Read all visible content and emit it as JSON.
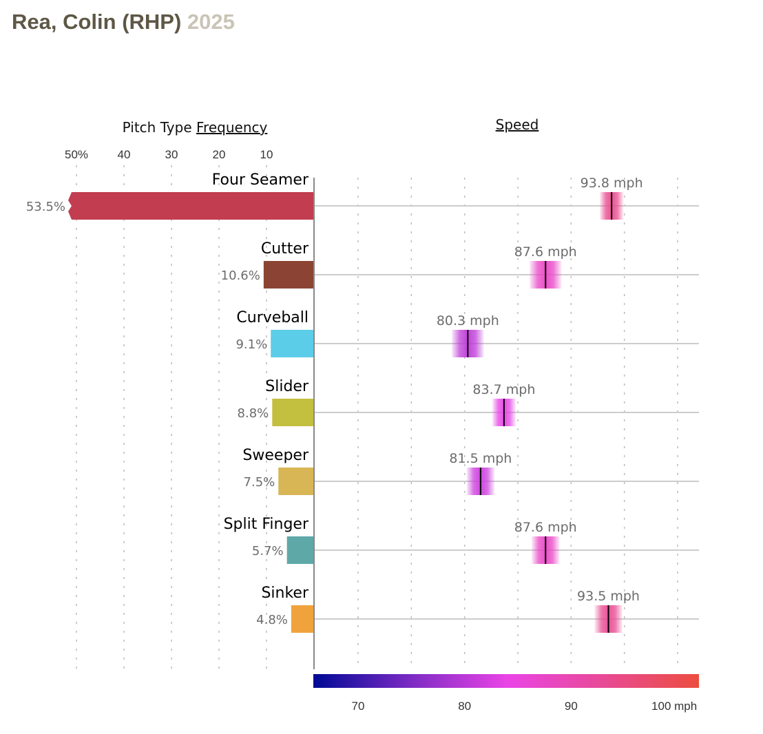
{
  "header": {
    "player": "Rea, Colin (RHP)",
    "year": "2025"
  },
  "chart_data": [
    {
      "type": "bar",
      "title_prefix": "Pitch Type ",
      "title_link": "Frequency",
      "orientation": "horizontal-leftward",
      "categories": [
        "Four Seamer",
        "Cutter",
        "Curveball",
        "Slider",
        "Sweeper",
        "Split Finger",
        "Sinker"
      ],
      "values": [
        53.5,
        10.6,
        9.1,
        8.8,
        7.5,
        5.7,
        4.8
      ],
      "value_labels": [
        "53.5%",
        "10.6%",
        "9.1%",
        "8.8%",
        "7.5%",
        "5.7%",
        "4.8%"
      ],
      "colors": [
        "#c23d4f",
        "#8b4433",
        "#5bcde8",
        "#c3bf3f",
        "#d8b555",
        "#5fa8a8",
        "#f0a33c"
      ],
      "xlim": [
        0,
        50
      ],
      "clipped_categories": [
        "Four Seamer"
      ],
      "ticks": [
        50,
        40,
        30,
        20,
        10
      ],
      "tick_labels": [
        "50%",
        "40",
        "30",
        "20",
        "10"
      ],
      "grid": true
    },
    {
      "type": "scatter",
      "title": "Speed",
      "categories": [
        "Four Seamer",
        "Cutter",
        "Curveball",
        "Slider",
        "Sweeper",
        "Split Finger",
        "Sinker"
      ],
      "values": [
        93.8,
        87.6,
        80.3,
        83.7,
        81.5,
        87.6,
        93.5
      ],
      "value_labels": [
        "93.8 mph",
        "87.6 mph",
        "80.3 mph",
        "83.7 mph",
        "81.5 mph",
        "87.6 mph",
        "93.5 mph"
      ],
      "spread_mph": [
        1.1,
        1.5,
        1.5,
        1.1,
        1.3,
        1.3,
        1.3
      ],
      "xlim": [
        65.8,
        102
      ],
      "ticks": [
        70,
        80,
        90,
        100
      ],
      "tick_labels": [
        "70",
        "80",
        "90",
        "100 mph"
      ],
      "minor_grid": [
        70,
        75,
        80,
        85,
        90,
        95,
        100
      ],
      "colorscale": [
        {
          "mph": 65.8,
          "color": "#000a96"
        },
        {
          "mph": 76,
          "color": "#8a2ec8"
        },
        {
          "mph": 84,
          "color": "#ea44e6"
        },
        {
          "mph": 93,
          "color": "#e84a96"
        },
        {
          "mph": 102,
          "color": "#ec4d3f"
        }
      ],
      "grid": true
    }
  ]
}
